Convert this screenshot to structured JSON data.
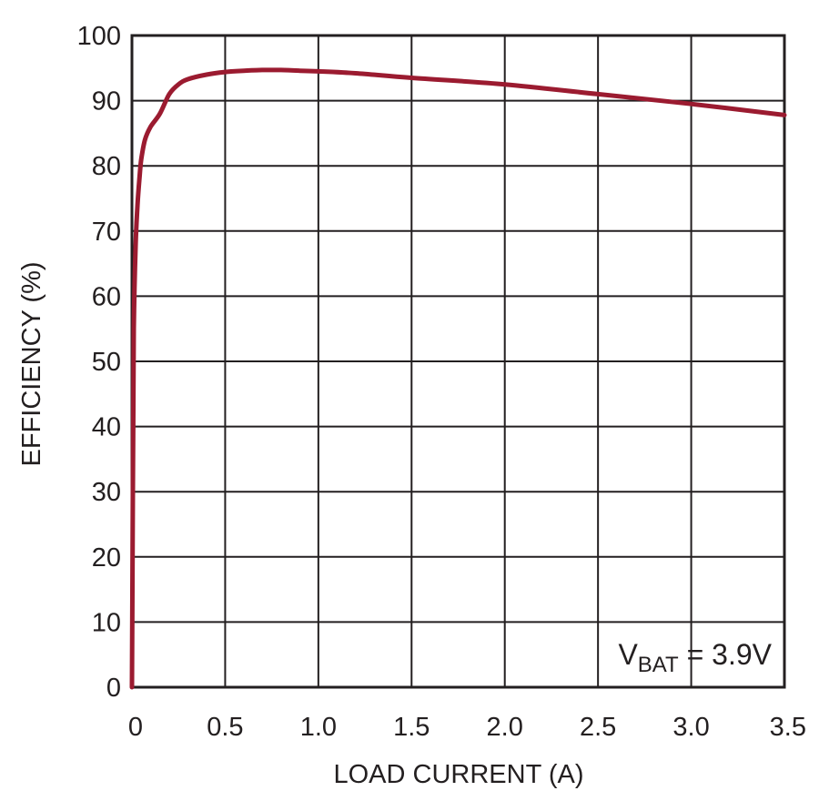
{
  "chart_data": {
    "type": "line",
    "title": "",
    "xlabel": "LOAD CURRENT (A)",
    "ylabel": "EFFICIENCY (%)",
    "xlim": [
      0,
      3.5
    ],
    "ylim": [
      0,
      100
    ],
    "x_ticks": [
      0,
      0.5,
      1.0,
      1.5,
      2.0,
      2.5,
      3.0,
      3.5
    ],
    "x_tick_labels": [
      "0",
      "0.5",
      "1.0",
      "1.5",
      "2.0",
      "2.5",
      "3.0",
      "3.5"
    ],
    "y_ticks": [
      0,
      10,
      20,
      30,
      40,
      50,
      60,
      70,
      80,
      90,
      100
    ],
    "y_tick_labels": [
      "0",
      "10",
      "20",
      "30",
      "40",
      "50",
      "60",
      "70",
      "80",
      "90",
      "100"
    ],
    "grid": true,
    "legend": "none",
    "line_color": "#9b1b30",
    "annotation": {
      "main": "V",
      "sub": "BAT",
      "rest": " = 3.9V"
    },
    "series": [
      {
        "x": [
          0.0,
          0.005,
          0.01,
          0.02,
          0.03,
          0.04,
          0.05,
          0.07,
          0.1,
          0.15,
          0.2,
          0.25,
          0.3,
          0.4,
          0.5,
          0.6,
          0.7,
          0.8,
          0.9,
          1.0,
          1.2,
          1.5,
          2.0,
          2.5,
          3.0,
          3.5
        ],
        "values": [
          0,
          30,
          55,
          68,
          74,
          78,
          81,
          84,
          86,
          88,
          91,
          92.5,
          93.3,
          94.0,
          94.4,
          94.6,
          94.7,
          94.7,
          94.6,
          94.5,
          94.2,
          93.5,
          92.5,
          91.0,
          89.5,
          87.8
        ]
      }
    ]
  }
}
